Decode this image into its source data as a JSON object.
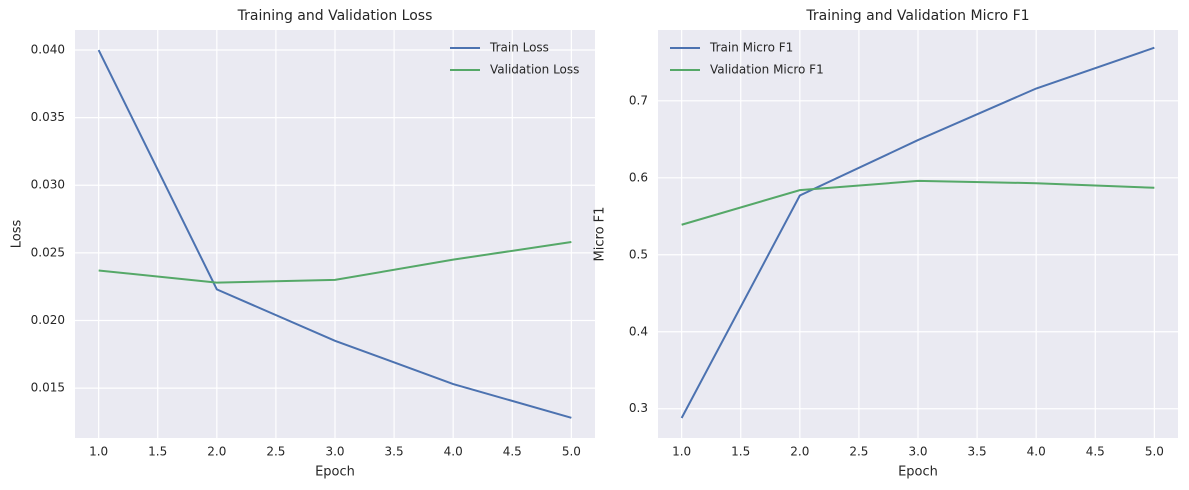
{
  "chart_data": [
    {
      "type": "line",
      "title": "Training and Validation Loss",
      "xlabel": "Epoch",
      "ylabel": "Loss",
      "x": [
        1,
        2,
        3,
        4,
        5
      ],
      "series": [
        {
          "name": "Train Loss",
          "color": "#4c72b0",
          "values": [
            0.04,
            0.0223,
            0.0185,
            0.0153,
            0.0128
          ]
        },
        {
          "name": "Validation Loss",
          "color": "#55a868",
          "values": [
            0.0237,
            0.0228,
            0.023,
            0.0245,
            0.0258
          ]
        }
      ],
      "xlim": [
        0.8,
        5.2
      ],
      "xticks": [
        {
          "value": 1,
          "label": "1.0"
        },
        1.5,
        {
          "value": 2,
          "label": "2.0"
        },
        2.5,
        {
          "value": 3,
          "label": "3.0"
        },
        3.5,
        {
          "value": 4,
          "label": "4.0"
        },
        4.5,
        {
          "value": 5,
          "label": "5.0"
        }
      ],
      "ylim": [
        0.01131,
        0.04148
      ],
      "yticks": [
        {
          "value": 0.015,
          "label": "0.015"
        },
        {
          "value": 0.02,
          "label": "0.020"
        },
        {
          "value": 0.025,
          "label": "0.025"
        },
        {
          "value": 0.03,
          "label": "0.030"
        },
        {
          "value": 0.035,
          "label": "0.035"
        },
        {
          "value": 0.04,
          "label": "0.040"
        }
      ],
      "grid": true,
      "legend": "upper-right"
    },
    {
      "type": "line",
      "title": "Training and Validation Micro F1",
      "xlabel": "Epoch",
      "ylabel": "Micro F1",
      "x": [
        1,
        2,
        3,
        4,
        5
      ],
      "series": [
        {
          "name": "Train Micro F1",
          "color": "#4c72b0",
          "values": [
            0.288,
            0.577,
            0.649,
            0.716,
            0.769
          ]
        },
        {
          "name": "Validation Micro F1",
          "color": "#55a868",
          "values": [
            0.539,
            0.584,
            0.596,
            0.593,
            0.587
          ]
        }
      ],
      "xlim": [
        0.8,
        5.2
      ],
      "xticks": [
        {
          "value": 1,
          "label": "1.0"
        },
        1.5,
        {
          "value": 2,
          "label": "2.0"
        },
        2.5,
        {
          "value": 3,
          "label": "3.0"
        },
        3.5,
        {
          "value": 4,
          "label": "4.0"
        },
        4.5,
        {
          "value": 5,
          "label": "5.0"
        }
      ],
      "ylim": [
        0.262,
        0.792
      ],
      "yticks": [
        0.3,
        0.4,
        0.5,
        0.6,
        0.7
      ],
      "grid": true,
      "legend": "upper-left"
    }
  ]
}
